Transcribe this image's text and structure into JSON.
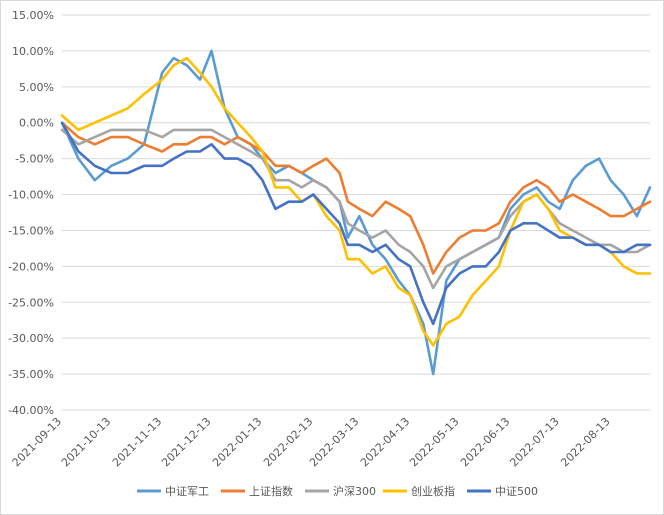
{
  "chart_data": {
    "type": "line",
    "title": "",
    "xlabel": "",
    "ylabel": "",
    "ylim": [
      -40,
      15
    ],
    "y_ticks": [
      "15.00%",
      "10.00%",
      "5.00%",
      "0.00%",
      "-5.00%",
      "-10.00%",
      "-15.00%",
      "-20.00%",
      "-25.00%",
      "-30.00%",
      "-35.00%",
      "-40.00%"
    ],
    "x_ticks": [
      "2021-09-13",
      "2021-10-13",
      "2021-11-13",
      "2021-12-13",
      "2022-01-13",
      "2022-02-13",
      "2022-03-13",
      "2022-04-13",
      "2022-05-13",
      "2022-06-13",
      "2022-07-13",
      "2022-08-13"
    ],
    "legend_position": "bottom",
    "grid": "horizontal",
    "x": [
      "2021-09-13",
      "2021-09-23",
      "2021-10-03",
      "2021-10-13",
      "2021-10-23",
      "2021-11-02",
      "2021-11-13",
      "2021-11-20",
      "2021-11-28",
      "2021-12-06",
      "2021-12-13",
      "2021-12-21",
      "2021-12-29",
      "2022-01-06",
      "2022-01-13",
      "2022-01-21",
      "2022-01-29",
      "2022-02-06",
      "2022-02-13",
      "2022-02-21",
      "2022-03-01",
      "2022-03-06",
      "2022-03-13",
      "2022-03-21",
      "2022-03-29",
      "2022-04-06",
      "2022-04-13",
      "2022-04-21",
      "2022-04-27",
      "2022-05-05",
      "2022-05-13",
      "2022-05-21",
      "2022-05-29",
      "2022-06-06",
      "2022-06-13",
      "2022-06-21",
      "2022-06-29",
      "2022-07-06",
      "2022-07-13",
      "2022-07-21",
      "2022-07-29",
      "2022-08-06",
      "2022-08-13",
      "2022-08-21",
      "2022-08-29",
      "2022-09-06"
    ],
    "series": [
      {
        "name": "中证军工",
        "color": "#5b9bd5",
        "values": [
          0,
          -5,
          -8,
          -6,
          -5,
          -3,
          7,
          9,
          8,
          6,
          10,
          2,
          -2,
          -3,
          -5,
          -7,
          -6,
          -7,
          -8,
          -9,
          -11,
          -16,
          -13,
          -17,
          -19,
          -22,
          -24,
          -28,
          -35,
          -22,
          -19,
          -18,
          -17,
          -16,
          -12,
          -10,
          -9,
          -11,
          -12,
          -8,
          -6,
          -5,
          -8,
          -10,
          -13,
          -9
        ]
      },
      {
        "name": "上证指数",
        "color": "#ed7d31",
        "values": [
          0,
          -2,
          -3,
          -2,
          -2,
          -3,
          -4,
          -3,
          -3,
          -2,
          -2,
          -3,
          -2,
          -3,
          -4,
          -6,
          -6,
          -7,
          -6,
          -5,
          -7,
          -11,
          -12,
          -13,
          -11,
          -12,
          -13,
          -17,
          -21,
          -18,
          -16,
          -15,
          -15,
          -14,
          -11,
          -9,
          -8,
          -9,
          -11,
          -10,
          -11,
          -12,
          -13,
          -13,
          -12,
          -11
        ]
      },
      {
        "name": "沪深300",
        "color": "#a5a5a5",
        "values": [
          -1,
          -3,
          -2,
          -1,
          -1,
          -1,
          -2,
          -1,
          -1,
          -1,
          -1,
          -2,
          -3,
          -4,
          -5,
          -8,
          -8,
          -9,
          -8,
          -9,
          -11,
          -14,
          -15,
          -16,
          -15,
          -17,
          -18,
          -20,
          -23,
          -20,
          -19,
          -18,
          -17,
          -16,
          -13,
          -11,
          -10,
          -12,
          -14,
          -15,
          -16,
          -17,
          -17,
          -18,
          -18,
          -17
        ]
      },
      {
        "name": "创业板指",
        "color": "#ffc000",
        "values": [
          1,
          -1,
          0,
          1,
          2,
          4,
          6,
          8,
          9,
          7,
          5,
          2,
          0,
          -2,
          -4,
          -9,
          -9,
          -11,
          -10,
          -13,
          -15,
          -19,
          -19,
          -21,
          -20,
          -23,
          -24,
          -29,
          -31,
          -28,
          -27,
          -24,
          -22,
          -20,
          -15,
          -11,
          -10,
          -12,
          -15,
          -16,
          -17,
          -17,
          -18,
          -20,
          -21,
          -21
        ]
      },
      {
        "name": "中证500",
        "color": "#4472c4",
        "values": [
          0,
          -4,
          -6,
          -7,
          -7,
          -6,
          -6,
          -5,
          -4,
          -4,
          -3,
          -5,
          -5,
          -6,
          -8,
          -12,
          -11,
          -11,
          -10,
          -12,
          -14,
          -17,
          -17,
          -18,
          -17,
          -19,
          -20,
          -25,
          -28,
          -23,
          -21,
          -20,
          -20,
          -18,
          -15,
          -14,
          -14,
          -15,
          -16,
          -16,
          -17,
          -17,
          -18,
          -18,
          -17,
          -17
        ]
      }
    ]
  }
}
